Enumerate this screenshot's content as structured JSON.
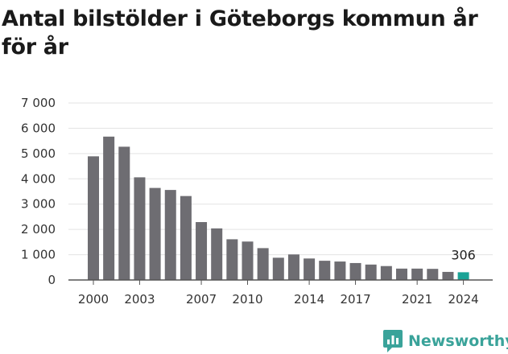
{
  "title": "Antal bilstölder i Göteborgs kommun år för år",
  "brand": {
    "name": "Newsworthy",
    "icon": "newsworthy-logo-icon",
    "color": "#3aa39a"
  },
  "chart_data": {
    "type": "bar",
    "title": "Antal bilstölder i Göteborgs kommun år för år",
    "xlabel": "",
    "ylabel": "",
    "ylim": [
      0,
      7000
    ],
    "yticks": [
      0,
      1000,
      2000,
      3000,
      4000,
      5000,
      6000,
      7000
    ],
    "ytick_labels": [
      "0",
      "1 000",
      "2 000",
      "3 000",
      "4 000",
      "5 000",
      "6 000",
      "7 000"
    ],
    "xtick_labels": [
      "2000",
      "2003",
      "2007",
      "2010",
      "2014",
      "2017",
      "2021",
      "2024"
    ],
    "grid": true,
    "categories": [
      "2000",
      "2001",
      "2002",
      "2003",
      "2004",
      "2005",
      "2006",
      "2007",
      "2008",
      "2009",
      "2010",
      "2011",
      "2012",
      "2013",
      "2014",
      "2015",
      "2016",
      "2017",
      "2018",
      "2019",
      "2020",
      "2021",
      "2022",
      "2023",
      "2024"
    ],
    "values": [
      4890,
      5670,
      5270,
      4060,
      3640,
      3560,
      3320,
      2290,
      2040,
      1610,
      1520,
      1260,
      880,
      1010,
      850,
      760,
      730,
      670,
      610,
      550,
      450,
      450,
      440,
      320,
      306
    ],
    "bar_color": "#6e6d72",
    "highlight_color": "#1aa396",
    "highlight_index": 24,
    "annotation": {
      "category": "2024",
      "label": "306"
    }
  }
}
